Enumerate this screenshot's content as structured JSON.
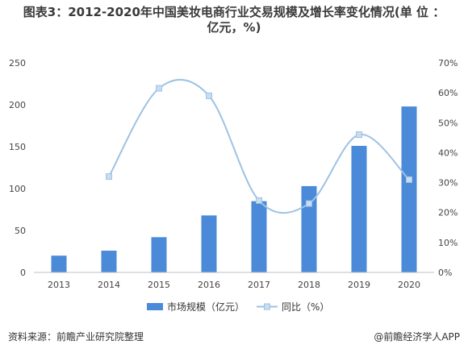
{
  "title_line1": "图表3：2012-2020年中国美妆电商行业交易规模及增长率变化情况(单 位 ：",
  "title_line2": "亿元，%)",
  "footer": {
    "source": "资料来源：前瞻产业研究院整理",
    "brand": "@前瞻经济学人APP"
  },
  "colors": {
    "bar": "#4a8ad8",
    "line": "#9ec2e3",
    "marker": "#c8ddf0"
  },
  "chart_data": {
    "type": "bar",
    "categories": [
      "2013",
      "2014",
      "2015",
      "2016",
      "2017",
      "2018",
      "2019",
      "2020"
    ],
    "series": [
      {
        "name": "市场规模（亿元）",
        "type": "bar",
        "axis": "left",
        "values": [
          20,
          26,
          42,
          68,
          85,
          103,
          151,
          198
        ]
      },
      {
        "name": "同比（%）",
        "type": "line",
        "axis": "right",
        "smooth": true,
        "values": [
          null,
          32,
          61.5,
          59,
          24,
          23,
          46,
          31
        ]
      }
    ],
    "y_left": {
      "ticks": [
        0,
        50,
        100,
        150,
        200,
        250
      ],
      "lim": [
        0,
        250
      ]
    },
    "y_right": {
      "ticks": [
        "0%",
        "10%",
        "20%",
        "30%",
        "40%",
        "50%",
        "60%",
        "70%"
      ],
      "lim": [
        0,
        70
      ]
    },
    "legend_position": "bottom",
    "grid": false
  }
}
